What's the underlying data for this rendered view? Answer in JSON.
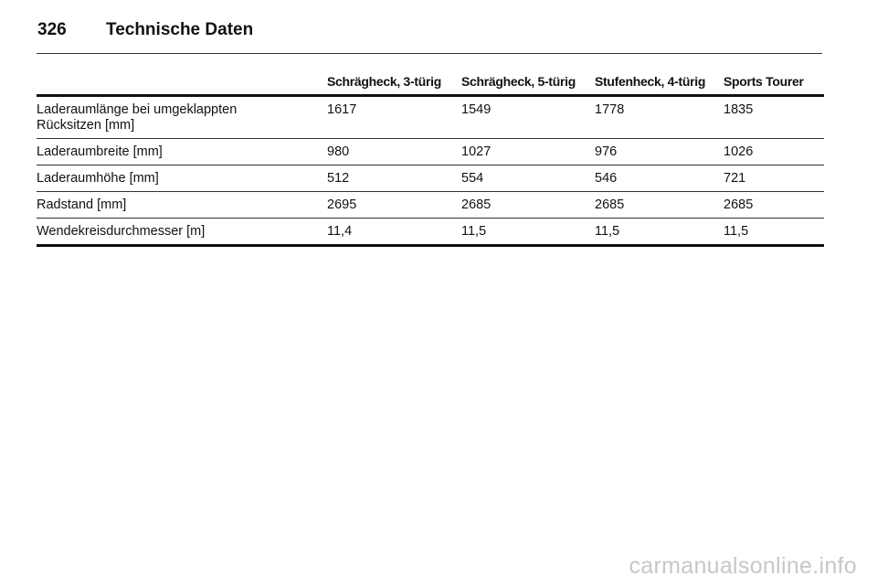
{
  "header": {
    "page_number": "326",
    "title": "Technische Daten"
  },
  "table": {
    "columns": [
      "",
      "Schrägheck, 3-türig",
      "Schrägheck, 5-türig",
      "Stufenheck, 4-türig",
      "Sports Tourer"
    ],
    "rows": [
      {
        "label_line1": "Laderaumlänge bei umgeklappten",
        "label_line2": "Rücksitzen [mm]",
        "values": [
          "1617",
          "1549",
          "1778",
          "1835"
        ]
      },
      {
        "label_line1": "Laderaumbreite [mm]",
        "label_line2": "",
        "values": [
          "980",
          "1027",
          "976",
          "1026"
        ]
      },
      {
        "label_line1": "Laderaumhöhe [mm]",
        "label_line2": "",
        "values": [
          "512",
          "554",
          "546",
          "721"
        ]
      },
      {
        "label_line1": "Radstand [mm]",
        "label_line2": "",
        "values": [
          "2695",
          "2685",
          "2685",
          "2685"
        ]
      },
      {
        "label_line1": "Wendekreisdurchmesser [m]",
        "label_line2": "",
        "values": [
          "11,4",
          "11,5",
          "11,5",
          "11,5"
        ]
      }
    ]
  },
  "watermark": "carmanualsonline.info"
}
